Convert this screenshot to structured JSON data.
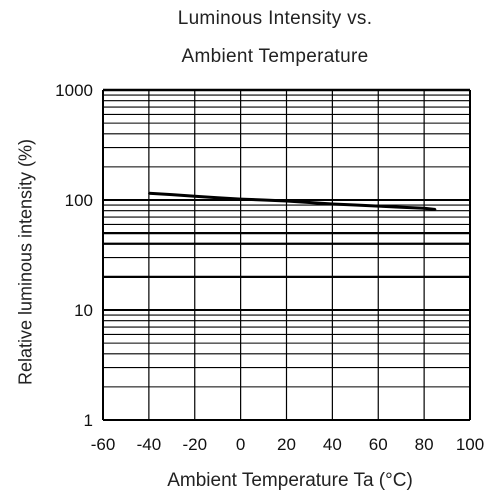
{
  "chart_data": {
    "type": "line",
    "title_line1": "Luminous Intensity vs.",
    "title_line2": "Ambient Temperature",
    "xlabel": "Ambient Temperature Ta (°C)",
    "ylabel": "Relative luminous intensity  (%)",
    "x_scale": "linear",
    "y_scale": "log",
    "xlim": [
      -60,
      100
    ],
    "ylim": [
      1,
      1000
    ],
    "x_ticks": [
      "-60",
      "-40",
      "-20",
      "0",
      "20",
      "40",
      "60",
      "80",
      "100"
    ],
    "y_ticks": [
      "1",
      "10",
      "100",
      "1000"
    ],
    "grid": true,
    "series": [
      {
        "x": [
          -40,
          -30,
          -20,
          -10,
          0,
          10,
          20,
          30,
          40,
          50,
          60,
          70,
          80,
          85
        ],
        "y": [
          115,
          112,
          108,
          105,
          102,
          100,
          98,
          95,
          92,
          90,
          88,
          86,
          84,
          82
        ]
      }
    ]
  },
  "colors": {
    "grid": "#000000",
    "series": "#000000",
    "background": "#ffffff"
  }
}
